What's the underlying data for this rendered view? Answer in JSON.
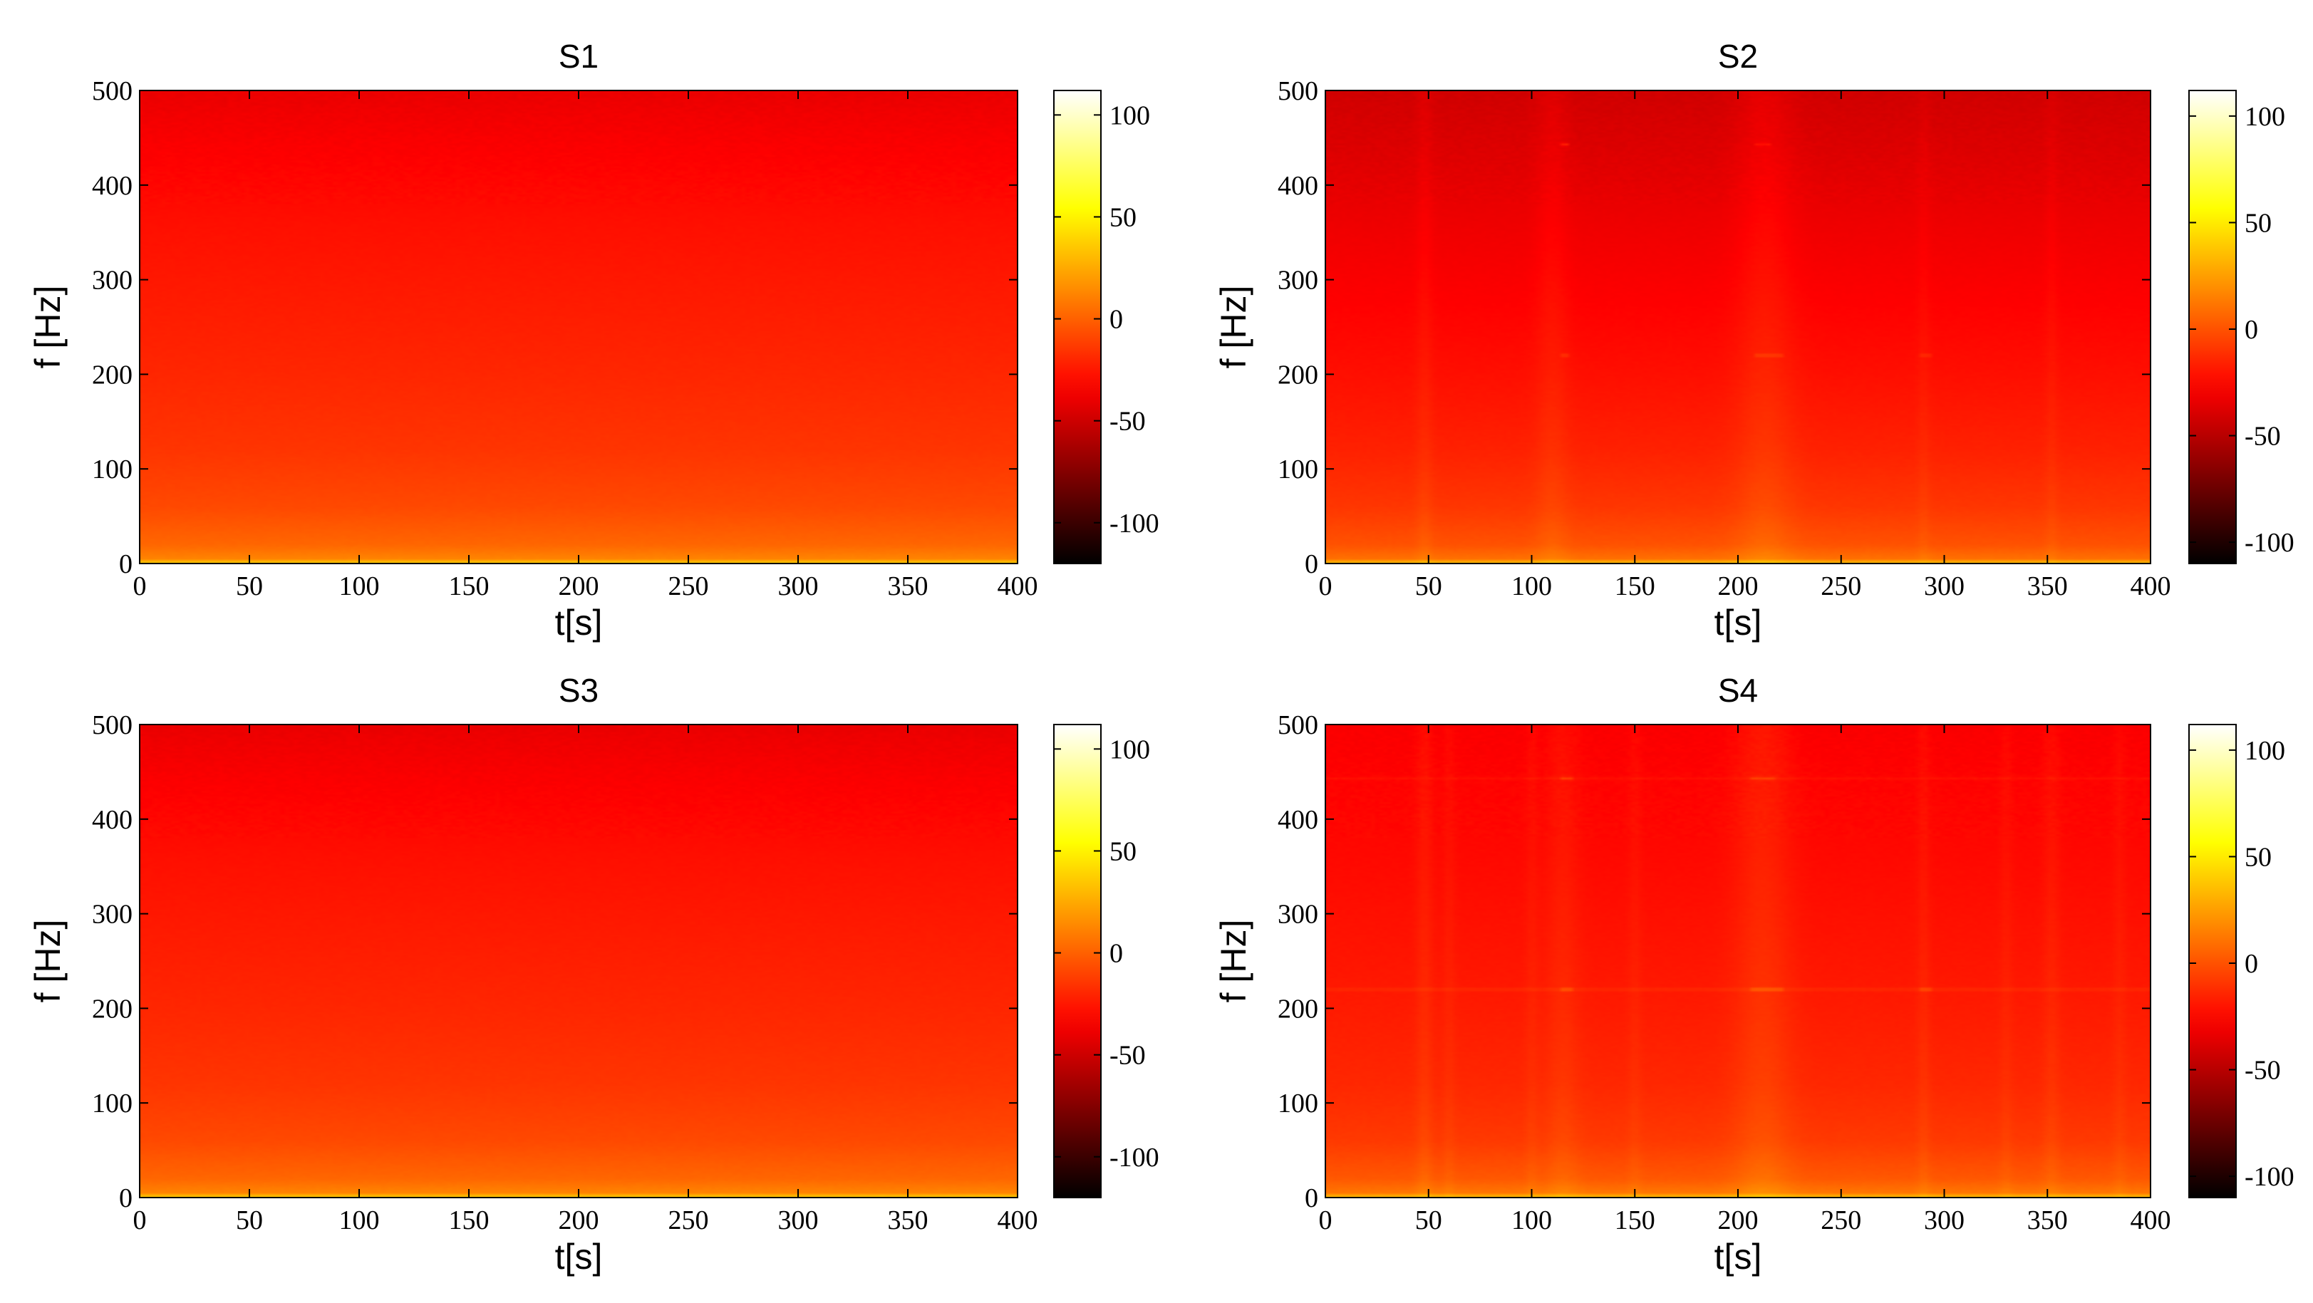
{
  "chart_data": [
    {
      "type": "heatmap",
      "title": "S1",
      "xlabel": "t[s]",
      "ylabel": "f [Hz]",
      "xlim": [
        0,
        400
      ],
      "ylim": [
        0,
        500
      ],
      "xticks": [
        "0",
        "50",
        "100",
        "150",
        "200",
        "250",
        "300",
        "350",
        "400"
      ],
      "yticks": [
        "0",
        "100",
        "200",
        "300",
        "400",
        "500"
      ],
      "colorbar": {
        "range": [
          -120,
          112
        ],
        "ticks": [
          "-100",
          "-50",
          "0",
          "50",
          "100"
        ],
        "colormap": "hot"
      },
      "profile": {
        "f": [
          0,
          5,
          20,
          60,
          120,
          200,
          280,
          360,
          440,
          500
        ],
        "value": [
          40,
          12,
          2,
          -8,
          -15,
          -20,
          -24,
          -28,
          -34,
          -40
        ]
      },
      "vertical_bands": [],
      "tones": []
    },
    {
      "type": "heatmap",
      "title": "S2",
      "xlabel": "t[s]",
      "ylabel": "f [Hz]",
      "xlim": [
        0,
        400
      ],
      "ylim": [
        0,
        500
      ],
      "xticks": [
        "0",
        "50",
        "100",
        "150",
        "200",
        "250",
        "300",
        "350",
        "400"
      ],
      "yticks": [
        "0",
        "100",
        "200",
        "300",
        "400",
        "500"
      ],
      "colorbar": {
        "range": [
          -110,
          112
        ],
        "ticks": [
          "-100",
          "-50",
          "0",
          "50",
          "100"
        ],
        "colormap": "hot"
      },
      "profile": {
        "f": [
          0,
          5,
          20,
          60,
          120,
          200,
          280,
          360,
          440,
          500
        ],
        "value": [
          38,
          10,
          0,
          -9,
          -16,
          -22,
          -27,
          -32,
          -38,
          -42
        ]
      },
      "vertical_bands": [
        {
          "t": 48,
          "width": 4,
          "strength": 4
        },
        {
          "t": 110,
          "width": 8,
          "strength": 5
        },
        {
          "t": 213,
          "width": 14,
          "strength": 7
        },
        {
          "t": 290,
          "width": 3,
          "strength": 3
        },
        {
          "t": 352,
          "width": 3,
          "strength": 3
        }
      ],
      "tones": [
        {
          "f": 443,
          "t": [
            113,
            118
          ],
          "strength": 18
        },
        {
          "f": 443,
          "t": [
            208,
            215
          ],
          "strength": 10
        },
        {
          "f": 220,
          "t": [
            113,
            118
          ],
          "strength": 12
        },
        {
          "f": 220,
          "t": [
            208,
            222
          ],
          "strength": 12
        },
        {
          "f": 220,
          "t": [
            289,
            293
          ],
          "strength": 10
        }
      ]
    },
    {
      "type": "heatmap",
      "title": "S3",
      "xlabel": "t[s]",
      "ylabel": "f [Hz]",
      "xlim": [
        0,
        400
      ],
      "ylim": [
        0,
        500
      ],
      "xticks": [
        "0",
        "50",
        "100",
        "150",
        "200",
        "250",
        "300",
        "350",
        "400"
      ],
      "yticks": [
        "0",
        "100",
        "200",
        "300",
        "400",
        "500"
      ],
      "colorbar": {
        "range": [
          -120,
          112
        ],
        "ticks": [
          "-100",
          "-50",
          "0",
          "50",
          "100"
        ],
        "colormap": "hot"
      },
      "profile": {
        "f": [
          0,
          5,
          20,
          60,
          120,
          200,
          280,
          360,
          440,
          500
        ],
        "value": [
          40,
          12,
          2,
          -8,
          -15,
          -20,
          -24,
          -28,
          -34,
          -40
        ]
      },
      "vertical_bands": [],
      "tones": []
    },
    {
      "type": "heatmap",
      "title": "S4",
      "xlabel": "t[s]",
      "ylabel": "f [Hz]",
      "xlim": [
        0,
        400
      ],
      "ylim": [
        0,
        500
      ],
      "xticks": [
        "0",
        "50",
        "100",
        "150",
        "200",
        "250",
        "300",
        "350",
        "400"
      ],
      "yticks": [
        "0",
        "100",
        "200",
        "300",
        "400",
        "500"
      ],
      "colorbar": {
        "range": [
          -110,
          112
        ],
        "ticks": [
          "-100",
          "-50",
          "0",
          "50",
          "100"
        ],
        "colormap": "hot"
      },
      "profile": {
        "f": [
          0,
          5,
          20,
          60,
          120,
          200,
          280,
          360,
          440,
          500
        ],
        "value": [
          38,
          12,
          2,
          -8,
          -14,
          -18,
          -21,
          -24,
          -26,
          -28
        ]
      },
      "vertical_bands": [
        {
          "t": 48,
          "width": 4,
          "strength": 5
        },
        {
          "t": 60,
          "width": 3,
          "strength": 3
        },
        {
          "t": 100,
          "width": 3,
          "strength": 3
        },
        {
          "t": 115,
          "width": 8,
          "strength": 5
        },
        {
          "t": 150,
          "width": 3,
          "strength": 3
        },
        {
          "t": 212,
          "width": 14,
          "strength": 8
        },
        {
          "t": 290,
          "width": 3,
          "strength": 4
        },
        {
          "t": 330,
          "width": 3,
          "strength": 3
        },
        {
          "t": 352,
          "width": 4,
          "strength": 4
        },
        {
          "t": 385,
          "width": 3,
          "strength": 3
        }
      ],
      "tones": [
        {
          "f": 443,
          "t": [
            0,
            400
          ],
          "strength": 4
        },
        {
          "f": 443,
          "t": [
            113,
            120
          ],
          "strength": 12
        },
        {
          "f": 443,
          "t": [
            206,
            218
          ],
          "strength": 10
        },
        {
          "f": 220,
          "t": [
            0,
            400
          ],
          "strength": 6
        },
        {
          "f": 220,
          "t": [
            113,
            120
          ],
          "strength": 14
        },
        {
          "f": 220,
          "t": [
            206,
            222
          ],
          "strength": 14
        },
        {
          "f": 220,
          "t": [
            289,
            293
          ],
          "strength": 12
        }
      ]
    }
  ]
}
